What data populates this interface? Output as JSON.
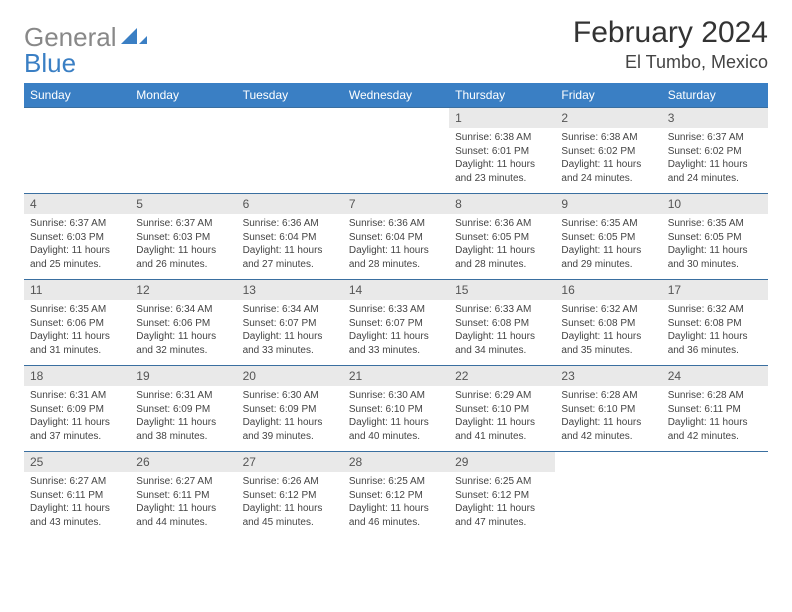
{
  "logo": {
    "text1": "General",
    "text2": "Blue"
  },
  "header": {
    "title": "February 2024",
    "location": "El Tumbo, Mexico"
  },
  "colors": {
    "header_bg": "#3a7fc4",
    "header_text": "#ffffff",
    "daynum_bg": "#e9e9e9",
    "row_divider": "#3a6fa0",
    "page_bg": "#ffffff",
    "body_text": "#444444"
  },
  "day_labels": [
    "Sunday",
    "Monday",
    "Tuesday",
    "Wednesday",
    "Thursday",
    "Friday",
    "Saturday"
  ],
  "weeks": [
    {
      "nums": [
        "",
        "",
        "",
        "",
        "1",
        "2",
        "3"
      ],
      "cells": [
        null,
        null,
        null,
        null,
        {
          "sunrise": "Sunrise: 6:38 AM",
          "sunset": "Sunset: 6:01 PM",
          "d1": "Daylight: 11 hours",
          "d2": "and 23 minutes."
        },
        {
          "sunrise": "Sunrise: 6:38 AM",
          "sunset": "Sunset: 6:02 PM",
          "d1": "Daylight: 11 hours",
          "d2": "and 24 minutes."
        },
        {
          "sunrise": "Sunrise: 6:37 AM",
          "sunset": "Sunset: 6:02 PM",
          "d1": "Daylight: 11 hours",
          "d2": "and 24 minutes."
        }
      ]
    },
    {
      "nums": [
        "4",
        "5",
        "6",
        "7",
        "8",
        "9",
        "10"
      ],
      "cells": [
        {
          "sunrise": "Sunrise: 6:37 AM",
          "sunset": "Sunset: 6:03 PM",
          "d1": "Daylight: 11 hours",
          "d2": "and 25 minutes."
        },
        {
          "sunrise": "Sunrise: 6:37 AM",
          "sunset": "Sunset: 6:03 PM",
          "d1": "Daylight: 11 hours",
          "d2": "and 26 minutes."
        },
        {
          "sunrise": "Sunrise: 6:36 AM",
          "sunset": "Sunset: 6:04 PM",
          "d1": "Daylight: 11 hours",
          "d2": "and 27 minutes."
        },
        {
          "sunrise": "Sunrise: 6:36 AM",
          "sunset": "Sunset: 6:04 PM",
          "d1": "Daylight: 11 hours",
          "d2": "and 28 minutes."
        },
        {
          "sunrise": "Sunrise: 6:36 AM",
          "sunset": "Sunset: 6:05 PM",
          "d1": "Daylight: 11 hours",
          "d2": "and 28 minutes."
        },
        {
          "sunrise": "Sunrise: 6:35 AM",
          "sunset": "Sunset: 6:05 PM",
          "d1": "Daylight: 11 hours",
          "d2": "and 29 minutes."
        },
        {
          "sunrise": "Sunrise: 6:35 AM",
          "sunset": "Sunset: 6:05 PM",
          "d1": "Daylight: 11 hours",
          "d2": "and 30 minutes."
        }
      ]
    },
    {
      "nums": [
        "11",
        "12",
        "13",
        "14",
        "15",
        "16",
        "17"
      ],
      "cells": [
        {
          "sunrise": "Sunrise: 6:35 AM",
          "sunset": "Sunset: 6:06 PM",
          "d1": "Daylight: 11 hours",
          "d2": "and 31 minutes."
        },
        {
          "sunrise": "Sunrise: 6:34 AM",
          "sunset": "Sunset: 6:06 PM",
          "d1": "Daylight: 11 hours",
          "d2": "and 32 minutes."
        },
        {
          "sunrise": "Sunrise: 6:34 AM",
          "sunset": "Sunset: 6:07 PM",
          "d1": "Daylight: 11 hours",
          "d2": "and 33 minutes."
        },
        {
          "sunrise": "Sunrise: 6:33 AM",
          "sunset": "Sunset: 6:07 PM",
          "d1": "Daylight: 11 hours",
          "d2": "and 33 minutes."
        },
        {
          "sunrise": "Sunrise: 6:33 AM",
          "sunset": "Sunset: 6:08 PM",
          "d1": "Daylight: 11 hours",
          "d2": "and 34 minutes."
        },
        {
          "sunrise": "Sunrise: 6:32 AM",
          "sunset": "Sunset: 6:08 PM",
          "d1": "Daylight: 11 hours",
          "d2": "and 35 minutes."
        },
        {
          "sunrise": "Sunrise: 6:32 AM",
          "sunset": "Sunset: 6:08 PM",
          "d1": "Daylight: 11 hours",
          "d2": "and 36 minutes."
        }
      ]
    },
    {
      "nums": [
        "18",
        "19",
        "20",
        "21",
        "22",
        "23",
        "24"
      ],
      "cells": [
        {
          "sunrise": "Sunrise: 6:31 AM",
          "sunset": "Sunset: 6:09 PM",
          "d1": "Daylight: 11 hours",
          "d2": "and 37 minutes."
        },
        {
          "sunrise": "Sunrise: 6:31 AM",
          "sunset": "Sunset: 6:09 PM",
          "d1": "Daylight: 11 hours",
          "d2": "and 38 minutes."
        },
        {
          "sunrise": "Sunrise: 6:30 AM",
          "sunset": "Sunset: 6:09 PM",
          "d1": "Daylight: 11 hours",
          "d2": "and 39 minutes."
        },
        {
          "sunrise": "Sunrise: 6:30 AM",
          "sunset": "Sunset: 6:10 PM",
          "d1": "Daylight: 11 hours",
          "d2": "and 40 minutes."
        },
        {
          "sunrise": "Sunrise: 6:29 AM",
          "sunset": "Sunset: 6:10 PM",
          "d1": "Daylight: 11 hours",
          "d2": "and 41 minutes."
        },
        {
          "sunrise": "Sunrise: 6:28 AM",
          "sunset": "Sunset: 6:10 PM",
          "d1": "Daylight: 11 hours",
          "d2": "and 42 minutes."
        },
        {
          "sunrise": "Sunrise: 6:28 AM",
          "sunset": "Sunset: 6:11 PM",
          "d1": "Daylight: 11 hours",
          "d2": "and 42 minutes."
        }
      ]
    },
    {
      "nums": [
        "25",
        "26",
        "27",
        "28",
        "29",
        "",
        ""
      ],
      "cells": [
        {
          "sunrise": "Sunrise: 6:27 AM",
          "sunset": "Sunset: 6:11 PM",
          "d1": "Daylight: 11 hours",
          "d2": "and 43 minutes."
        },
        {
          "sunrise": "Sunrise: 6:27 AM",
          "sunset": "Sunset: 6:11 PM",
          "d1": "Daylight: 11 hours",
          "d2": "and 44 minutes."
        },
        {
          "sunrise": "Sunrise: 6:26 AM",
          "sunset": "Sunset: 6:12 PM",
          "d1": "Daylight: 11 hours",
          "d2": "and 45 minutes."
        },
        {
          "sunrise": "Sunrise: 6:25 AM",
          "sunset": "Sunset: 6:12 PM",
          "d1": "Daylight: 11 hours",
          "d2": "and 46 minutes."
        },
        {
          "sunrise": "Sunrise: 6:25 AM",
          "sunset": "Sunset: 6:12 PM",
          "d1": "Daylight: 11 hours",
          "d2": "and 47 minutes."
        },
        null,
        null
      ]
    }
  ]
}
